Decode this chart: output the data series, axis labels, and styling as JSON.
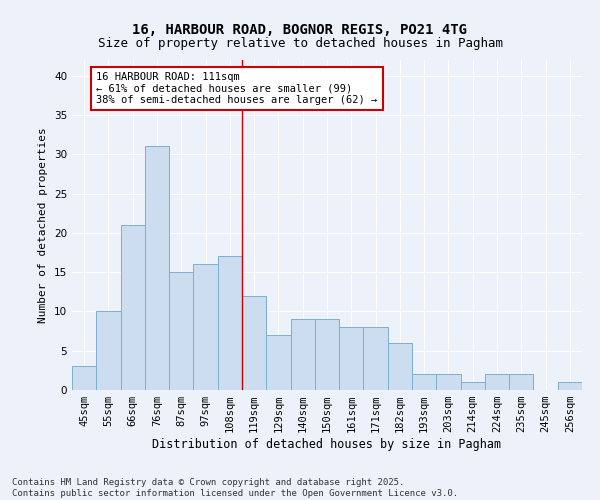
{
  "title_line1": "16, HARBOUR ROAD, BOGNOR REGIS, PO21 4TG",
  "title_line2": "Size of property relative to detached houses in Pagham",
  "xlabel": "Distribution of detached houses by size in Pagham",
  "ylabel": "Number of detached properties",
  "categories": [
    "45sqm",
    "55sqm",
    "66sqm",
    "76sqm",
    "87sqm",
    "97sqm",
    "108sqm",
    "119sqm",
    "129sqm",
    "140sqm",
    "150sqm",
    "161sqm",
    "171sqm",
    "182sqm",
    "193sqm",
    "203sqm",
    "214sqm",
    "224sqm",
    "235sqm",
    "245sqm",
    "256sqm"
  ],
  "values": [
    3,
    10,
    21,
    31,
    15,
    16,
    17,
    12,
    7,
    9,
    9,
    8,
    8,
    6,
    2,
    2,
    1,
    2,
    2,
    0,
    1
  ],
  "bar_color": "#ccddf0",
  "bar_edge_color": "#7bafd4",
  "vline_x_index": 6.5,
  "vline_color": "#cc0000",
  "annotation_text": "16 HARBOUR ROAD: 111sqm\n← 61% of detached houses are smaller (99)\n38% of semi-detached houses are larger (62) →",
  "annotation_box_facecolor": "#ffffff",
  "annotation_box_edgecolor": "#cc0000",
  "ylim": [
    0,
    42
  ],
  "yticks": [
    0,
    5,
    10,
    15,
    20,
    25,
    30,
    35,
    40
  ],
  "background_color": "#edf2fa",
  "grid_color": "#ffffff",
  "footer_text": "Contains HM Land Registry data © Crown copyright and database right 2025.\nContains public sector information licensed under the Open Government Licence v3.0.",
  "title_fontsize": 10,
  "subtitle_fontsize": 9,
  "xlabel_fontsize": 8.5,
  "ylabel_fontsize": 8,
  "tick_fontsize": 7.5,
  "annotation_fontsize": 7.5,
  "footer_fontsize": 6.5
}
